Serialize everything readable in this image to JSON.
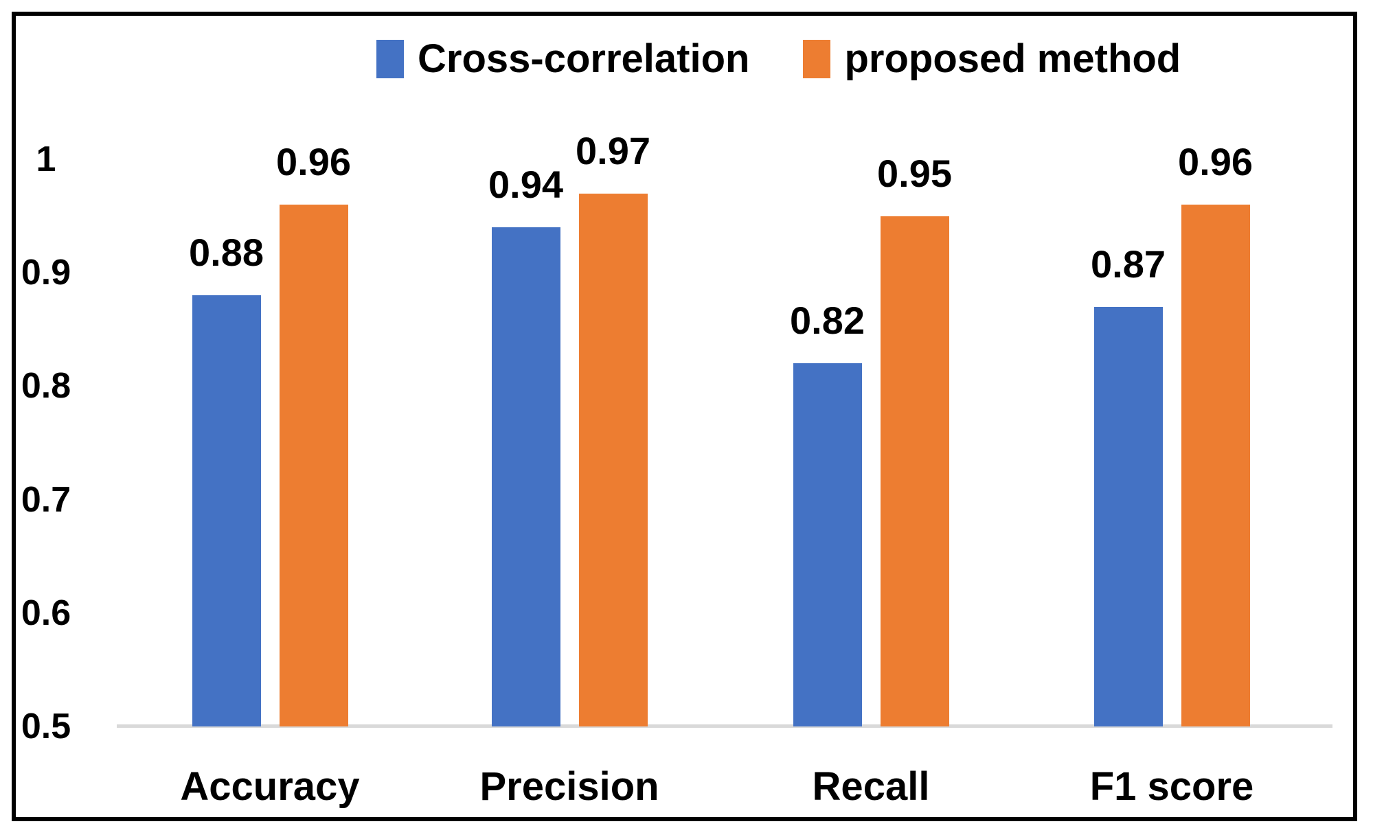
{
  "chart_data": {
    "type": "bar",
    "title": "",
    "xlabel": "",
    "ylabel": "",
    "categories": [
      "Accuracy",
      "Precision",
      "Recall",
      "F1 score"
    ],
    "series": [
      {
        "name": "Cross-correlation",
        "color": "#4472C4",
        "values": [
          0.88,
          0.94,
          0.82,
          0.87
        ]
      },
      {
        "name": "proposed method",
        "color": "#ED7D31",
        "values": [
          0.96,
          0.97,
          0.95,
          0.96
        ]
      }
    ],
    "ylim": [
      0.5,
      1.0
    ],
    "yticks": [
      1,
      0.9,
      0.8,
      0.7,
      0.6,
      0.5
    ],
    "ytick_labels": [
      "1",
      "0.9",
      "0.8",
      "0.7",
      "0.6",
      "0.5"
    ],
    "legend_position": "top-center",
    "grid": false,
    "data_labels": true,
    "colors": {
      "series1": "#4472C4",
      "series2": "#ED7D31",
      "baseline": "#D9D9D9",
      "text": "#000000",
      "frame_border": "#000000",
      "background": "#FFFFFF"
    }
  }
}
